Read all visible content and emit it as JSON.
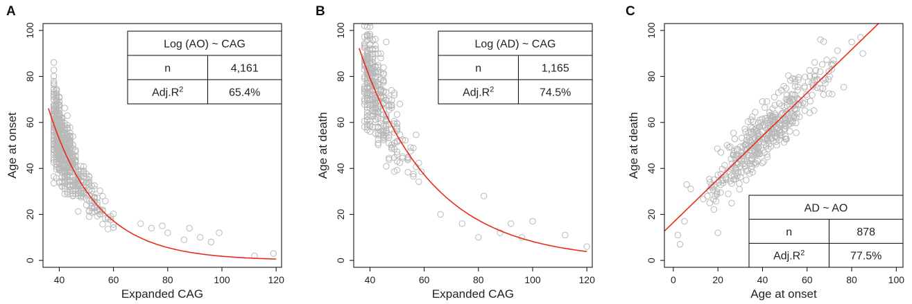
{
  "chart_data": [
    {
      "panel": "A",
      "type": "scatter",
      "xlabel": "Expanded CAG",
      "ylabel": "Age at onset",
      "xlim": [
        34,
        122
      ],
      "ylim": [
        -3,
        103
      ],
      "xticks": [
        40,
        60,
        80,
        100,
        120
      ],
      "yticks": [
        0,
        20,
        40,
        60,
        80,
        100
      ],
      "point_color": "#b8b8b8",
      "fit_color": "#e8291c",
      "fit": {
        "kind": "exp",
        "a": 500,
        "b": -0.0562,
        "x_from": 36,
        "x_to": 120
      },
      "scatter_approx": {
        "kind": "exp_cloud",
        "x_from": 36,
        "x_to": 120,
        "cluster_x": 42,
        "n_points": 650,
        "spread": 9,
        "seed": 11,
        "outliers": [
          [
            70,
            16
          ],
          [
            74,
            14
          ],
          [
            78,
            15
          ],
          [
            80,
            12
          ],
          [
            86,
            9
          ],
          [
            88,
            14
          ],
          [
            92,
            10
          ],
          [
            96,
            8
          ],
          [
            99,
            12
          ],
          [
            112,
            2
          ],
          [
            119,
            3
          ]
        ]
      },
      "stats_box": {
        "title": "Log (AO) ~ CAG",
        "rows": [
          {
            "label": "n",
            "value": "4,161"
          },
          {
            "label": "Adj.R",
            "sup": "2",
            "value": "65.4%"
          }
        ],
        "position": "top-right"
      }
    },
    {
      "panel": "B",
      "type": "scatter",
      "xlabel": "Expanded CAG",
      "ylabel": "Age at death",
      "xlim": [
        34,
        122
      ],
      "ylim": [
        -3,
        103
      ],
      "xticks": [
        40,
        60,
        80,
        100,
        120
      ],
      "yticks": [
        0,
        20,
        40,
        60,
        80,
        100
      ],
      "point_color": "#b8b8b8",
      "fit_color": "#e8291c",
      "fit": {
        "kind": "exp",
        "a": 360,
        "b": -0.0378,
        "x_from": 36,
        "x_to": 120
      },
      "scatter_approx": {
        "kind": "exp_cloud",
        "x_from": 36,
        "x_to": 120,
        "cluster_x": 42,
        "n_points": 380,
        "spread": 8,
        "seed": 23,
        "outliers": [
          [
            46,
            95
          ],
          [
            66,
            20
          ],
          [
            74,
            16
          ],
          [
            80,
            10
          ],
          [
            82,
            28
          ],
          [
            88,
            12
          ],
          [
            92,
            16
          ],
          [
            96,
            10
          ],
          [
            100,
            17
          ],
          [
            112,
            11
          ],
          [
            120,
            6
          ]
        ]
      },
      "stats_box": {
        "title": "Log (AD) ~ CAG",
        "rows": [
          {
            "label": "n",
            "value": "1,165"
          },
          {
            "label": "Adj.R",
            "sup": "2",
            "value": "74.5%"
          }
        ],
        "position": "top-right"
      }
    },
    {
      "panel": "C",
      "type": "scatter",
      "xlabel": "Age at onset",
      "ylabel": "Age at death",
      "xlim": [
        -4,
        103
      ],
      "ylim": [
        -3,
        103
      ],
      "xticks": [
        0,
        20,
        40,
        60,
        80,
        100
      ],
      "yticks": [
        0,
        20,
        40,
        60,
        80,
        100
      ],
      "point_color": "#b8b8b8",
      "fit_color": "#e8291c",
      "fit": {
        "kind": "linear",
        "intercept": 16.5,
        "slope": 0.94,
        "x_from": -4,
        "x_to": 103
      },
      "scatter_approx": {
        "kind": "linear_cloud",
        "x_from": 2,
        "x_to": 82,
        "center_x": 46,
        "n_points": 420,
        "spread": 7,
        "seed": 37,
        "outliers": [
          [
            2,
            11
          ],
          [
            3,
            7
          ],
          [
            5,
            17
          ],
          [
            6,
            33
          ],
          [
            20,
            12
          ],
          [
            66,
            96
          ],
          [
            80,
            95
          ],
          [
            84,
            97
          ],
          [
            85,
            90
          ]
        ]
      },
      "stats_box": {
        "title": "AD ~ AO",
        "rows": [
          {
            "label": "n",
            "value": "878"
          },
          {
            "label": "Adj.R",
            "sup": "2",
            "value": "77.5%"
          }
        ],
        "position": "bottom-right"
      }
    }
  ]
}
